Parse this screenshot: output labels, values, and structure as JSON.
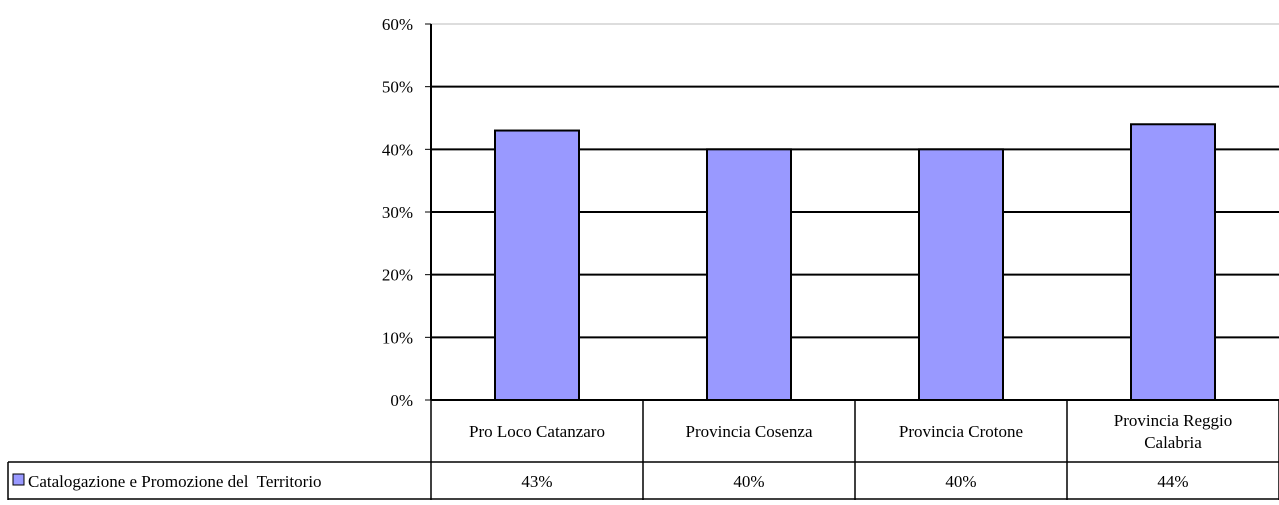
{
  "chart_data": {
    "type": "bar",
    "categories": [
      "Pro Loco Catanzaro",
      "Provincia Cosenza",
      "Provincia Crotone",
      "Provincia Reggio Calabria"
    ],
    "category_lines": [
      [
        "Pro Loco Catanzaro"
      ],
      [
        "Provincia Cosenza"
      ],
      [
        "Provincia Crotone"
      ],
      [
        "Provincia Reggio",
        "Calabria"
      ]
    ],
    "series": [
      {
        "name": "Catalogazione e Promozione del  Territorio",
        "values": [
          43,
          40,
          40,
          44
        ]
      }
    ],
    "data_table_labels": [
      "43%",
      "40%",
      "40%",
      "44%"
    ],
    "y_ticks": [
      "0%",
      "10%",
      "20%",
      "30%",
      "40%",
      "50%",
      "60%"
    ],
    "ylim": [
      0,
      60
    ],
    "y_unit": "%",
    "grid": true,
    "legend": "data-table",
    "bar_color": "#9999ff"
  }
}
